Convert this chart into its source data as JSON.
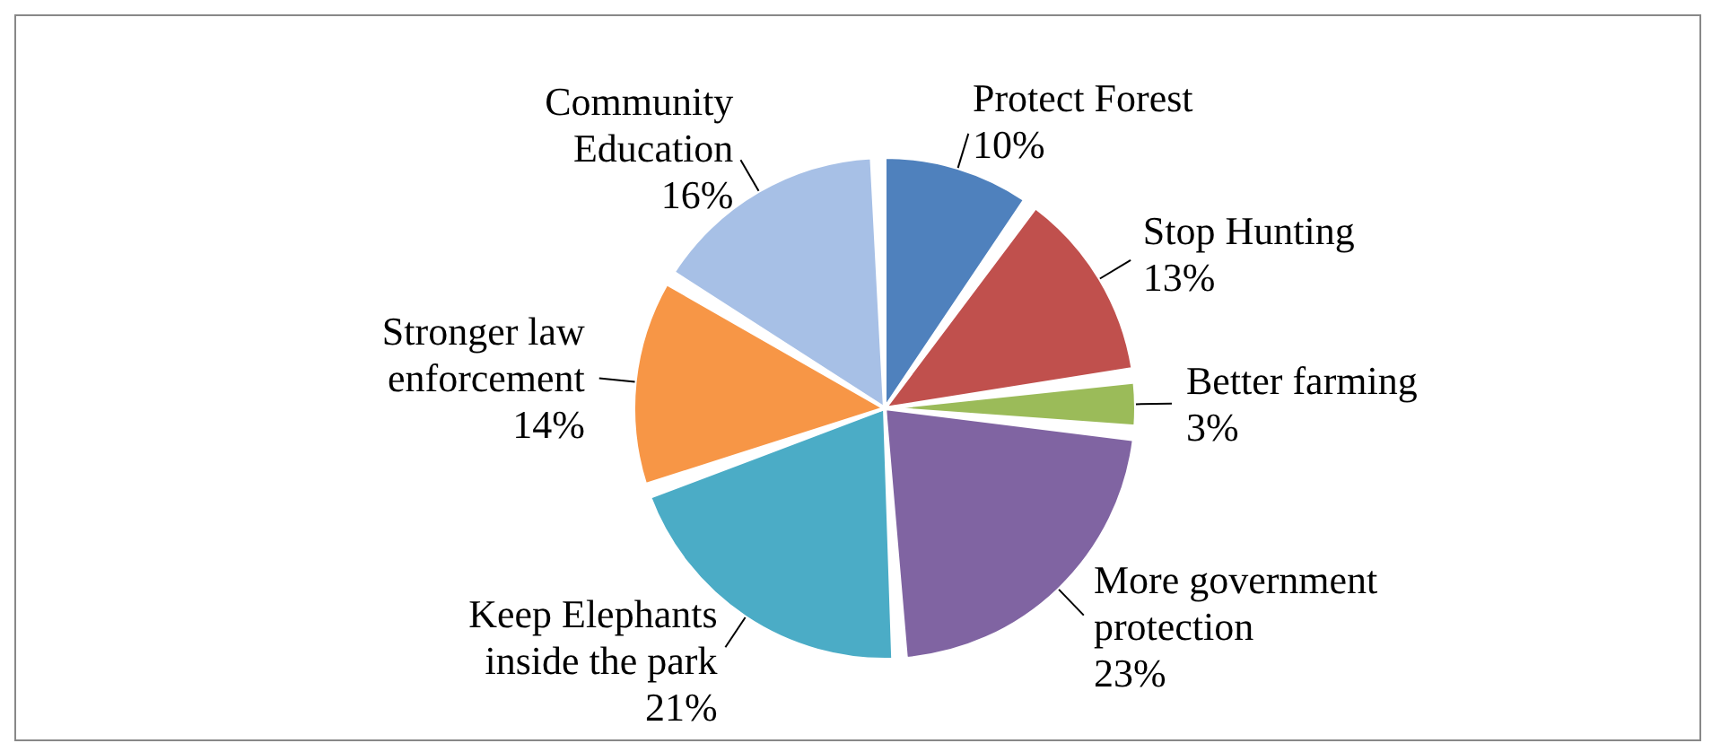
{
  "chart_data": {
    "type": "pie",
    "categories": [
      "Protect Forest",
      "Stop Hunting",
      "Better farming",
      "More government protection",
      "Keep Elephants inside the park",
      "Stronger law enforcement",
      "Community Education"
    ],
    "values": [
      10,
      13,
      3,
      23,
      21,
      14,
      16
    ],
    "value_labels": [
      "10%",
      "13%",
      "3%",
      "23%",
      "21%",
      "14%",
      "16%"
    ],
    "colors": [
      "#4f81bd",
      "#c0504d",
      "#9bbb59",
      "#8064a2",
      "#4bacc6",
      "#f79646",
      "#a7c0e6"
    ],
    "legend": false
  }
}
